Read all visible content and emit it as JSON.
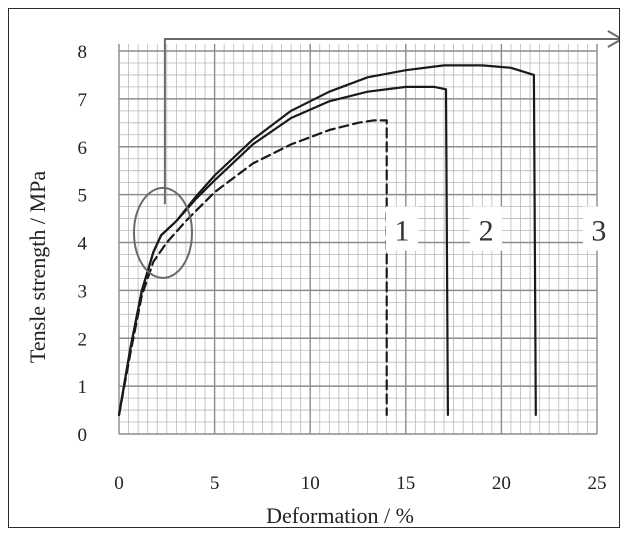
{
  "chart_data": {
    "type": "line",
    "xlabel": "Deformation / %",
    "ylabel": "Tensle strength / MPa",
    "xlim": [
      0,
      25
    ],
    "ylim": [
      0,
      8
    ],
    "xticks": [
      0,
      5,
      10,
      15,
      20,
      25
    ],
    "yticks": [
      0,
      1,
      2,
      3,
      4,
      5,
      6,
      7,
      8
    ],
    "grid": true,
    "series": [
      {
        "name": "1",
        "line_style": "dashed",
        "points": [
          [
            0,
            0.4
          ],
          [
            0.6,
            1.7
          ],
          [
            1.2,
            2.9
          ],
          [
            1.8,
            3.6
          ],
          [
            2.5,
            4.0
          ],
          [
            3.5,
            4.45
          ],
          [
            5,
            5.05
          ],
          [
            7,
            5.65
          ],
          [
            9,
            6.05
          ],
          [
            11,
            6.35
          ],
          [
            12.5,
            6.5
          ],
          [
            13.3,
            6.55
          ],
          [
            14,
            6.55
          ],
          [
            14,
            0.4
          ]
        ],
        "label_x": 14.8,
        "label_y": 4.25
      },
      {
        "name": "2",
        "line_style": "solid",
        "points": [
          [
            0,
            0.4
          ],
          [
            0.6,
            1.8
          ],
          [
            1.2,
            3.0
          ],
          [
            1.8,
            3.8
          ],
          [
            2.2,
            4.15
          ],
          [
            3,
            4.45
          ],
          [
            4,
            4.9
          ],
          [
            5,
            5.3
          ],
          [
            7,
            6.05
          ],
          [
            9,
            6.6
          ],
          [
            11,
            6.95
          ],
          [
            13,
            7.15
          ],
          [
            15,
            7.25
          ],
          [
            16.5,
            7.25
          ],
          [
            17.1,
            7.2
          ],
          [
            17.2,
            0.4
          ]
        ],
        "label_x": 19.2,
        "label_y": 4.25
      },
      {
        "name": "3",
        "line_style": "solid",
        "points": [
          [
            0,
            0.4
          ],
          [
            0.6,
            1.8
          ],
          [
            1.2,
            3.0
          ],
          [
            1.8,
            3.8
          ],
          [
            2.2,
            4.15
          ],
          [
            3,
            4.45
          ],
          [
            4,
            4.95
          ],
          [
            5,
            5.4
          ],
          [
            7,
            6.15
          ],
          [
            9,
            6.75
          ],
          [
            11,
            7.15
          ],
          [
            13,
            7.45
          ],
          [
            15,
            7.6
          ],
          [
            17,
            7.7
          ],
          [
            19,
            7.7
          ],
          [
            20.5,
            7.65
          ],
          [
            21.7,
            7.5
          ],
          [
            21.8,
            0.4
          ]
        ],
        "label_x": 25.1,
        "label_y": 4.25
      }
    ],
    "annotation": {
      "type": "circle-with-arrow",
      "circle_center": [
        2.3,
        4.2
      ],
      "arrow_path": [
        [
          2.4,
          4.8
        ],
        [
          2.4,
          8.25
        ],
        [
          26.3,
          8.25
        ]
      ]
    },
    "colors": {
      "curve": "#1a1a1a",
      "grid": "#b8b8b8",
      "annotation": "#6a6a6a"
    }
  }
}
